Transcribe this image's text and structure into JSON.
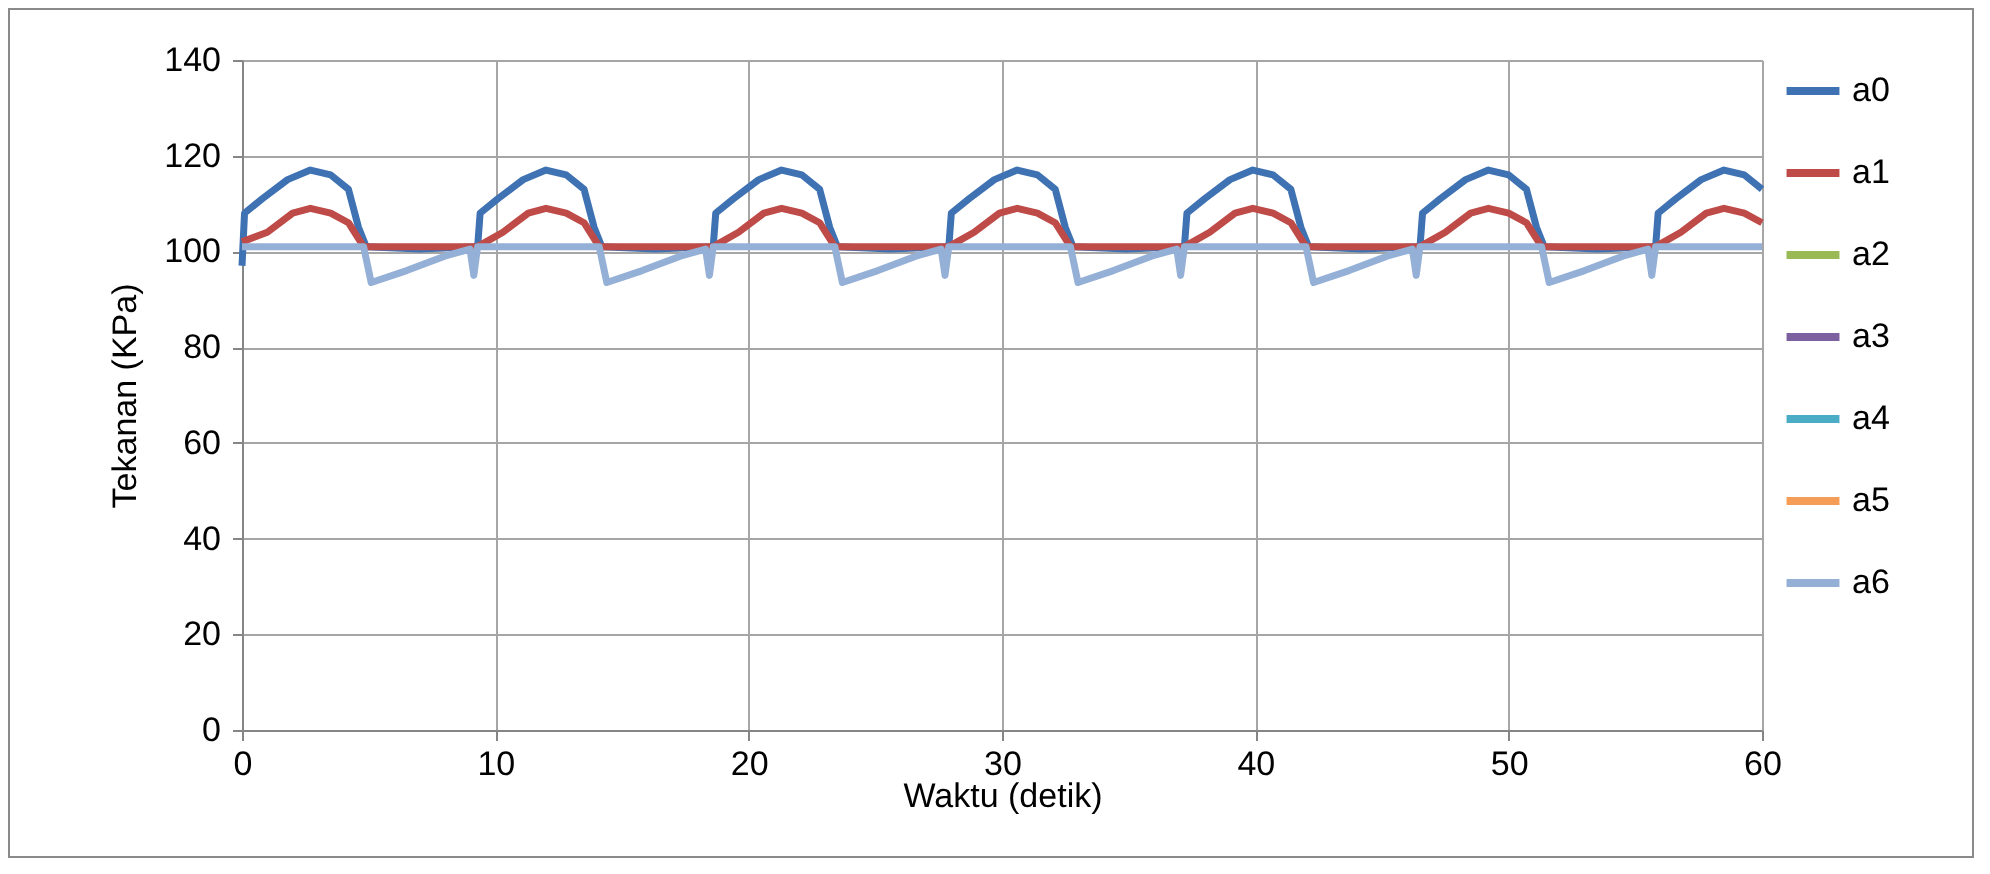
{
  "chart_data": {
    "type": "line",
    "xlabel": "Waktu (detik)",
    "ylabel": "Tekanan  (KPa)",
    "xlim": [
      0,
      60
    ],
    "xticks": [
      0,
      10,
      20,
      30,
      40,
      50,
      60
    ],
    "ylim": [
      0,
      140
    ],
    "yticks": [
      0,
      20,
      40,
      60,
      80,
      100,
      120,
      140
    ],
    "grid": true,
    "legend": "right",
    "marker": "none",
    "line_style": "solid",
    "series": [
      {
        "name": "a0",
        "color": "#3f72b3",
        "x": [
          0,
          0.1,
          0.8,
          1.8,
          2.7,
          3.5,
          4.2,
          4.6,
          4.9,
          7.0,
          9.3,
          9.4,
          10.1,
          11.1,
          12.0,
          12.8,
          13.5,
          13.9,
          14.2,
          16.3,
          18.6,
          18.7,
          19.4,
          20.4,
          21.3,
          22.1,
          22.8,
          23.2,
          23.5,
          25.6,
          27.9,
          28.0,
          28.7,
          29.7,
          30.6,
          31.4,
          32.1,
          32.5,
          32.8,
          34.9,
          37.2,
          37.3,
          38.0,
          39.0,
          39.9,
          40.7,
          41.4,
          41.8,
          42.1,
          44.2,
          46.5,
          46.6,
          47.3,
          48.3,
          49.2,
          50.0,
          50.7,
          51.1,
          51.4,
          53.5,
          55.8,
          55.9,
          56.6,
          57.6,
          58.5,
          59.3,
          60.0
        ],
        "values": [
          97,
          108,
          111,
          115,
          117,
          116,
          113,
          105,
          101,
          100.5,
          101,
          108,
          111,
          115,
          117,
          116,
          113,
          105,
          101,
          100.5,
          101,
          108,
          111,
          115,
          117,
          116,
          113,
          105,
          101,
          100.5,
          101,
          108,
          111,
          115,
          117,
          116,
          113,
          105,
          101,
          100.5,
          101,
          108,
          111,
          115,
          117,
          116,
          113,
          105,
          101,
          100.5,
          101,
          108,
          111,
          115,
          117,
          116,
          113,
          105,
          101,
          100.5,
          101,
          108,
          111,
          115,
          117,
          116,
          113
        ]
      },
      {
        "name": "a1",
        "color": "#be4b48",
        "x": [
          0,
          1.0,
          2.0,
          2.7,
          3.5,
          4.2,
          4.8,
          9.3,
          10.3,
          11.3,
          12.0,
          12.8,
          13.5,
          14.1,
          18.6,
          19.6,
          20.6,
          21.3,
          22.1,
          22.8,
          23.4,
          27.9,
          28.9,
          29.9,
          30.6,
          31.4,
          32.1,
          32.7,
          37.2,
          38.2,
          39.2,
          39.9,
          40.7,
          41.4,
          42.0,
          46.5,
          47.5,
          48.5,
          49.2,
          50.0,
          50.7,
          51.3,
          55.8,
          56.8,
          57.8,
          58.5,
          59.3,
          60.0
        ],
        "values": [
          102,
          104,
          108,
          109,
          108,
          106,
          101,
          101,
          104,
          108,
          109,
          108,
          106,
          101,
          101,
          104,
          108,
          109,
          108,
          106,
          101,
          101,
          104,
          108,
          109,
          108,
          106,
          101,
          101,
          104,
          108,
          109,
          108,
          106,
          101,
          101,
          104,
          108,
          109,
          108,
          106,
          101,
          101,
          104,
          108,
          109,
          108,
          106
        ]
      },
      {
        "name": "a2",
        "color": "#98b954"
      },
      {
        "name": "a3",
        "color": "#7d60a0"
      },
      {
        "name": "a4",
        "color": "#4aacc5"
      },
      {
        "name": "a5",
        "color": "#f59d56"
      },
      {
        "name": "a6",
        "color": "#95b0d6",
        "x": [
          0,
          4.8,
          5.1,
          6.5,
          8.0,
          9.0,
          9.15,
          9.3,
          14.1,
          14.4,
          15.8,
          17.3,
          18.3,
          18.45,
          18.6,
          23.4,
          23.7,
          25.1,
          26.6,
          27.6,
          27.75,
          27.9,
          32.7,
          33.0,
          34.4,
          35.9,
          36.9,
          37.05,
          37.2,
          42.0,
          42.3,
          43.7,
          45.2,
          46.2,
          46.35,
          46.5,
          51.3,
          51.6,
          53.0,
          54.5,
          55.5,
          55.65,
          55.8,
          60.0
        ],
        "values": [
          101,
          101,
          93.5,
          96,
          99,
          100.5,
          95,
          101,
          101,
          93.5,
          96,
          99,
          100.5,
          95,
          101,
          101,
          93.5,
          96,
          99,
          100.5,
          95,
          101,
          101,
          93.5,
          96,
          99,
          100.5,
          95,
          101,
          101,
          93.5,
          96,
          99,
          100.5,
          95,
          101,
          101,
          93.5,
          96,
          99,
          100.5,
          95,
          101,
          101
        ]
      }
    ]
  }
}
